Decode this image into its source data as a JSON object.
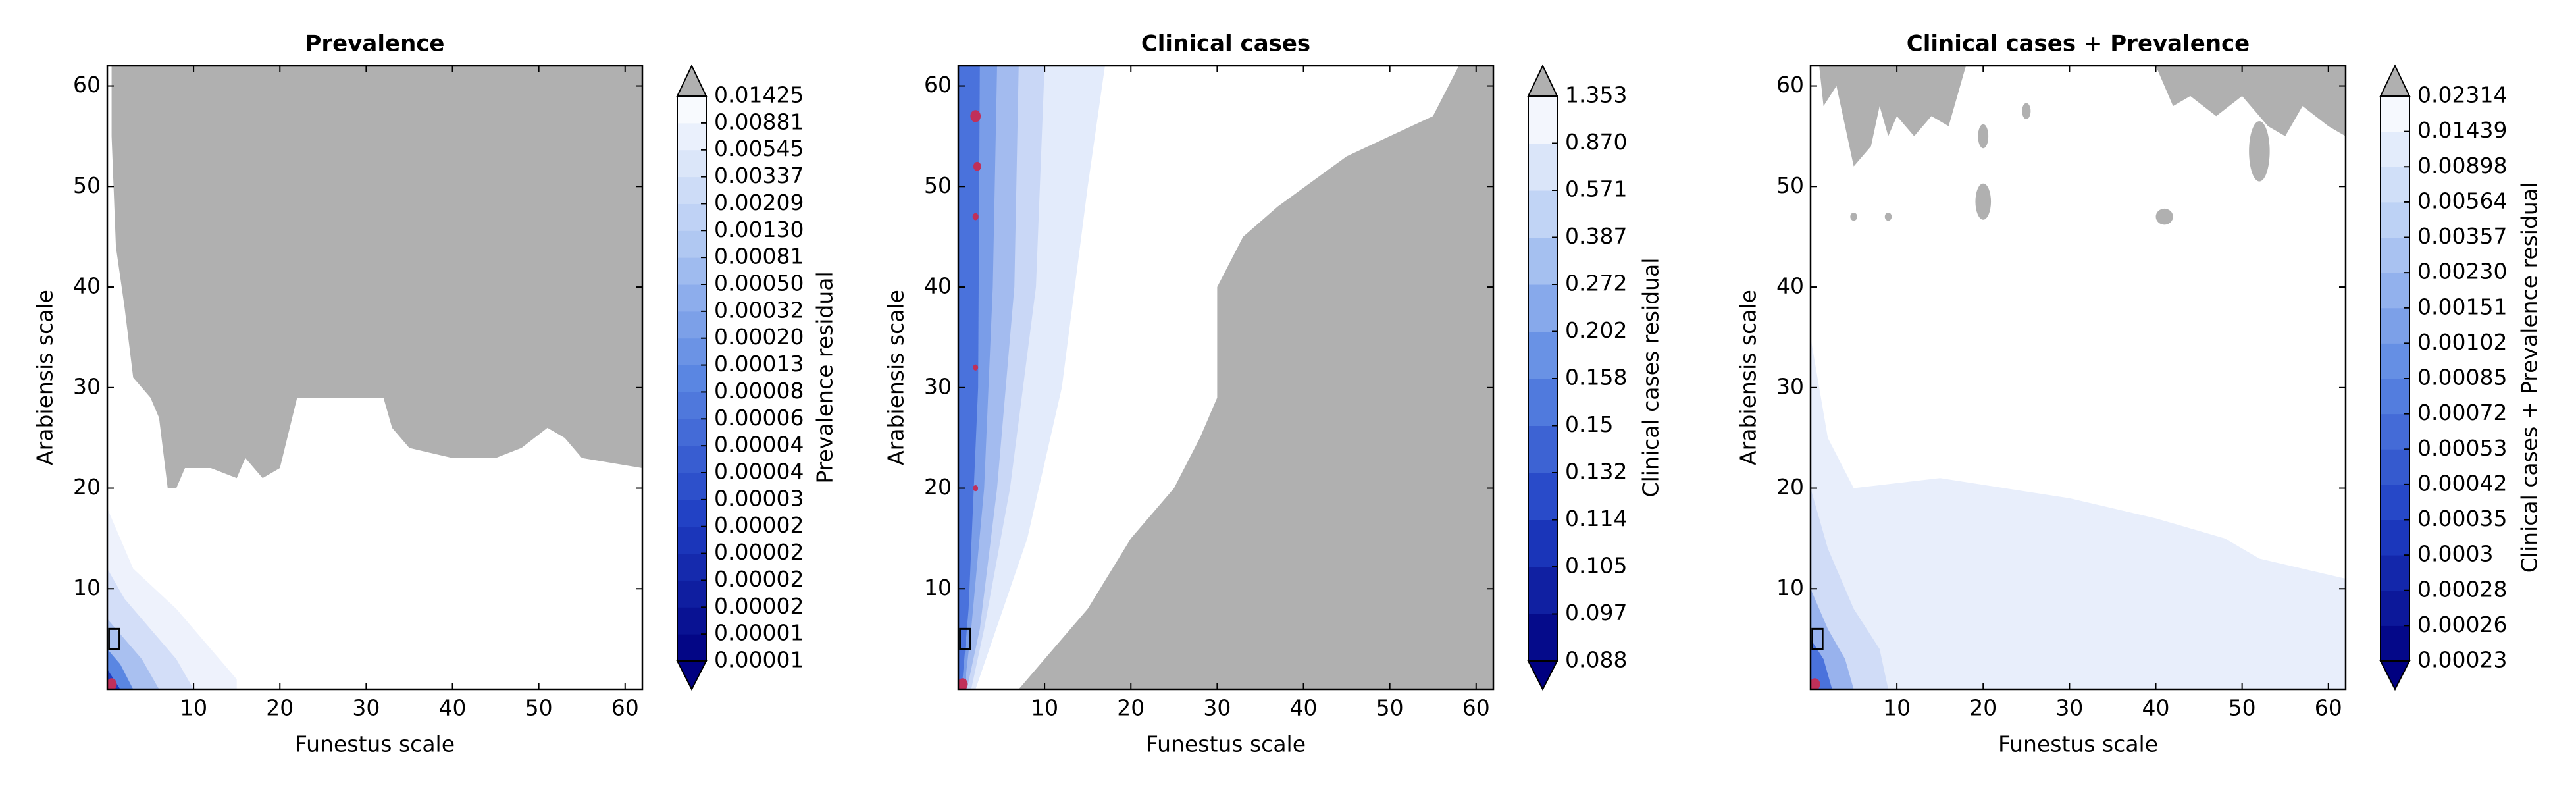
{
  "chart_data": [
    {
      "type": "contour",
      "title": "Prevalence",
      "xlabel": "Funestus scale",
      "ylabel": "Arabiensis scale",
      "xlim": [
        0,
        62
      ],
      "ylim": [
        0,
        62
      ],
      "xticks": [
        10,
        20,
        30,
        40,
        50,
        60
      ],
      "yticks": [
        10,
        20,
        30,
        40,
        50,
        60
      ],
      "colorbar_label": "Prevalence residual",
      "colorbar_ticks": [
        1e-05,
        1e-05,
        2e-05,
        2e-05,
        2e-05,
        2e-05,
        3e-05,
        4e-05,
        4e-05,
        6e-05,
        8e-05,
        0.00013,
        {
          "value": 0.0002,
          "label": "0.00020"
        },
        0.00032,
        {
          "value": 0.0005,
          "label": "0.00050"
        },
        0.00081,
        {
          "value": 0.0013,
          "label": "0.00130"
        },
        0.00209,
        0.00337,
        0.00545,
        0.00881,
        0.01425
      ],
      "colormap": [
        "#000080",
        "#1f3fc4",
        "#5a86e2",
        "#b4cbf3",
        "#ffffff"
      ],
      "over_color": "#b0b0b0"
    },
    {
      "type": "contour",
      "title": "Clinical cases",
      "xlabel": "Funestus scale",
      "ylabel": "Arabiensis scale",
      "xlim": [
        0,
        62
      ],
      "ylim": [
        0,
        62
      ],
      "xticks": [
        10,
        20,
        30,
        40,
        50,
        60
      ],
      "yticks": [
        10,
        20,
        30,
        40,
        50,
        60
      ],
      "colorbar_label": "Clinical cases residual",
      "colorbar_ticks": [
        0.088,
        0.097,
        0.105,
        0.114,
        0.132,
        0.15,
        0.158,
        0.202,
        0.272,
        0.387,
        0.571,
        {
          "value": 0.87,
          "label": "0.870"
        },
        1.353
      ],
      "colormap": [
        "#000080",
        "#1f3fc4",
        "#5a86e2",
        "#b4cbf3",
        "#ffffff"
      ],
      "over_color": "#b0b0b0"
    },
    {
      "type": "contour",
      "title": "Clinical cases + Prevalence",
      "xlabel": "Funestus scale",
      "ylabel": "Arabiensis scale",
      "xlim": [
        0,
        62
      ],
      "ylim": [
        0,
        62
      ],
      "xticks": [
        10,
        20,
        30,
        40,
        50,
        60
      ],
      "yticks": [
        10,
        20,
        30,
        40,
        50,
        60
      ],
      "colorbar_label": "Clinical cases + Prevalence residual",
      "colorbar_ticks": [
        0.00023,
        0.00026,
        0.00028,
        0.0003,
        0.00035,
        0.00042,
        0.00053,
        0.00072,
        0.00085,
        0.00102,
        0.00151,
        {
          "value": 0.0023,
          "label": "0.00230"
        },
        0.00357,
        0.00564,
        0.00898,
        0.01439,
        0.02314
      ],
      "colormap": [
        "#000080",
        "#1f3fc4",
        "#5a86e2",
        "#b4cbf3",
        "#ffffff"
      ],
      "over_color": "#b0b0b0"
    }
  ]
}
